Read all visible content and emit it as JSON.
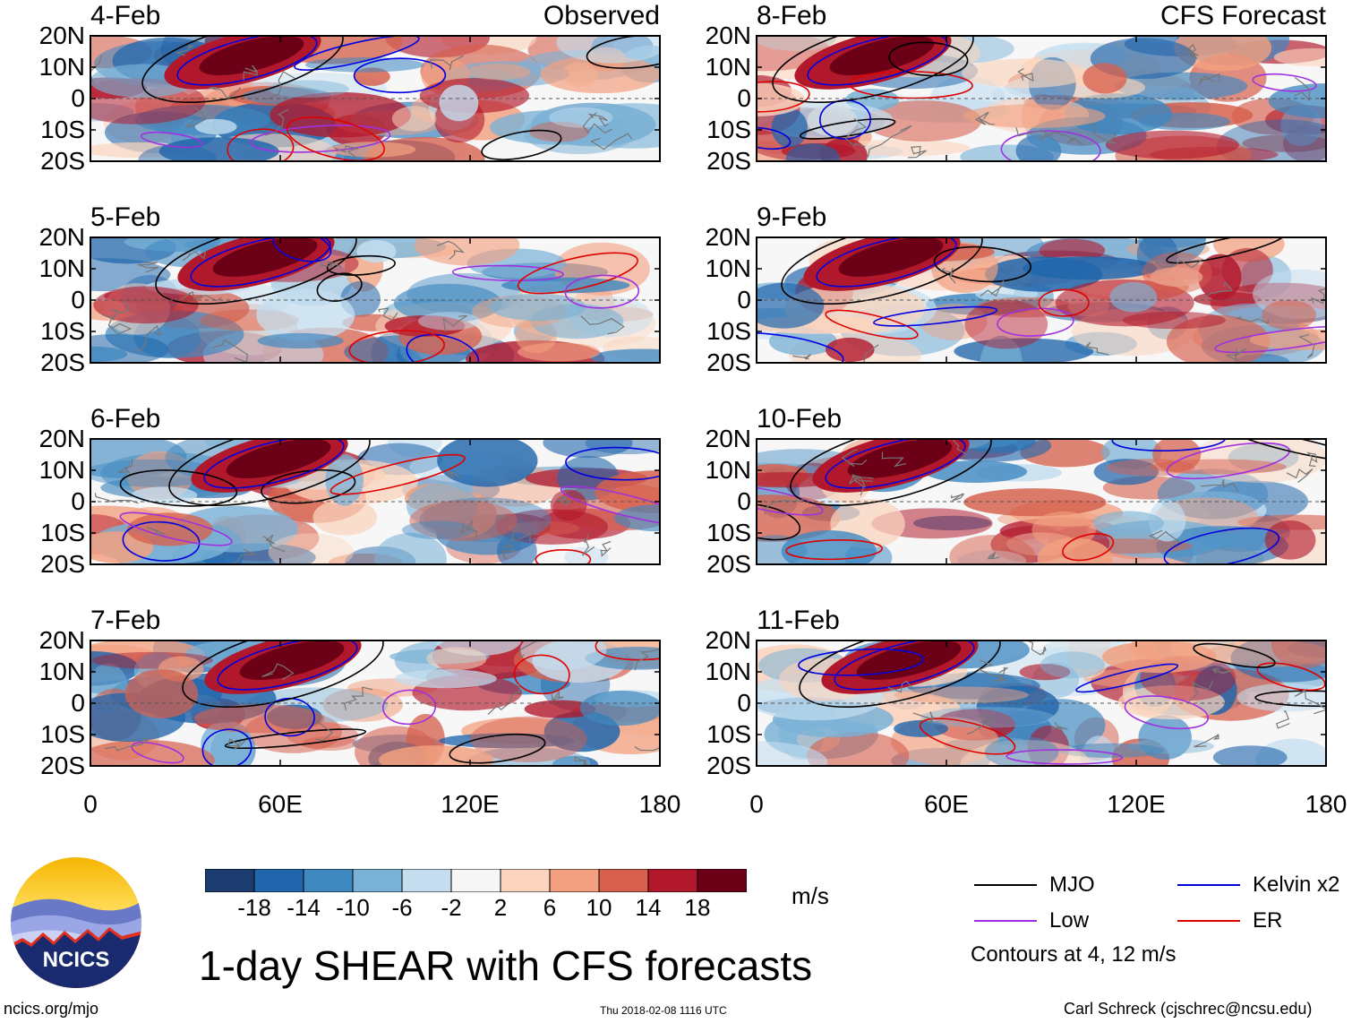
{
  "chart_data": {
    "type": "heatmap",
    "title": "1-day SHEAR with CFS forecasts",
    "units": "m/s",
    "variable": "SHEAR",
    "columns": [
      {
        "heading": "Observed",
        "dates": [
          "4-Feb",
          "5-Feb",
          "6-Feb",
          "7-Feb"
        ]
      },
      {
        "heading": "CFS Forecast",
        "dates": [
          "8-Feb",
          "9-Feb",
          "10-Feb",
          "11-Feb"
        ]
      }
    ],
    "x_axis": {
      "ticks": [
        "0",
        "60E",
        "120E",
        "180"
      ],
      "range": [
        0,
        180
      ]
    },
    "y_axis": {
      "ticks": [
        "20N",
        "10N",
        "0",
        "10S",
        "20S"
      ],
      "range": [
        -20,
        20
      ]
    },
    "colorbar": {
      "tick_labels": [
        "-18",
        "-14",
        "-10",
        "-6",
        "-2",
        "2",
        "6",
        "10",
        "14",
        "18"
      ],
      "colors": [
        "#1c3b6e",
        "#2166ac",
        "#3f88c0",
        "#7ab2d6",
        "#c4def0",
        "#f7f7f7",
        "#fbd4bd",
        "#f2a07f",
        "#d6604d",
        "#b2182b",
        "#6b0017"
      ]
    },
    "contours": {
      "levels_text": "Contours at 4, 12 m/s",
      "series": [
        {
          "name": "MJO",
          "color": "#000000"
        },
        {
          "name": "Kelvin x2",
          "color": "#0000e0"
        },
        {
          "name": "Low",
          "color": "#a030e0"
        },
        {
          "name": "ER",
          "color": "#e00000"
        }
      ]
    }
  },
  "units_label": "m/s",
  "contours_text": "Contours at 4, 12 m/s",
  "footer": {
    "left": "ncics.org/mjo",
    "center": "Thu 2018-02-08 1116 UTC",
    "right": "Carl Schreck (cjschrec@ncsu.edu)"
  },
  "logo": {
    "text": "NCICS"
  }
}
